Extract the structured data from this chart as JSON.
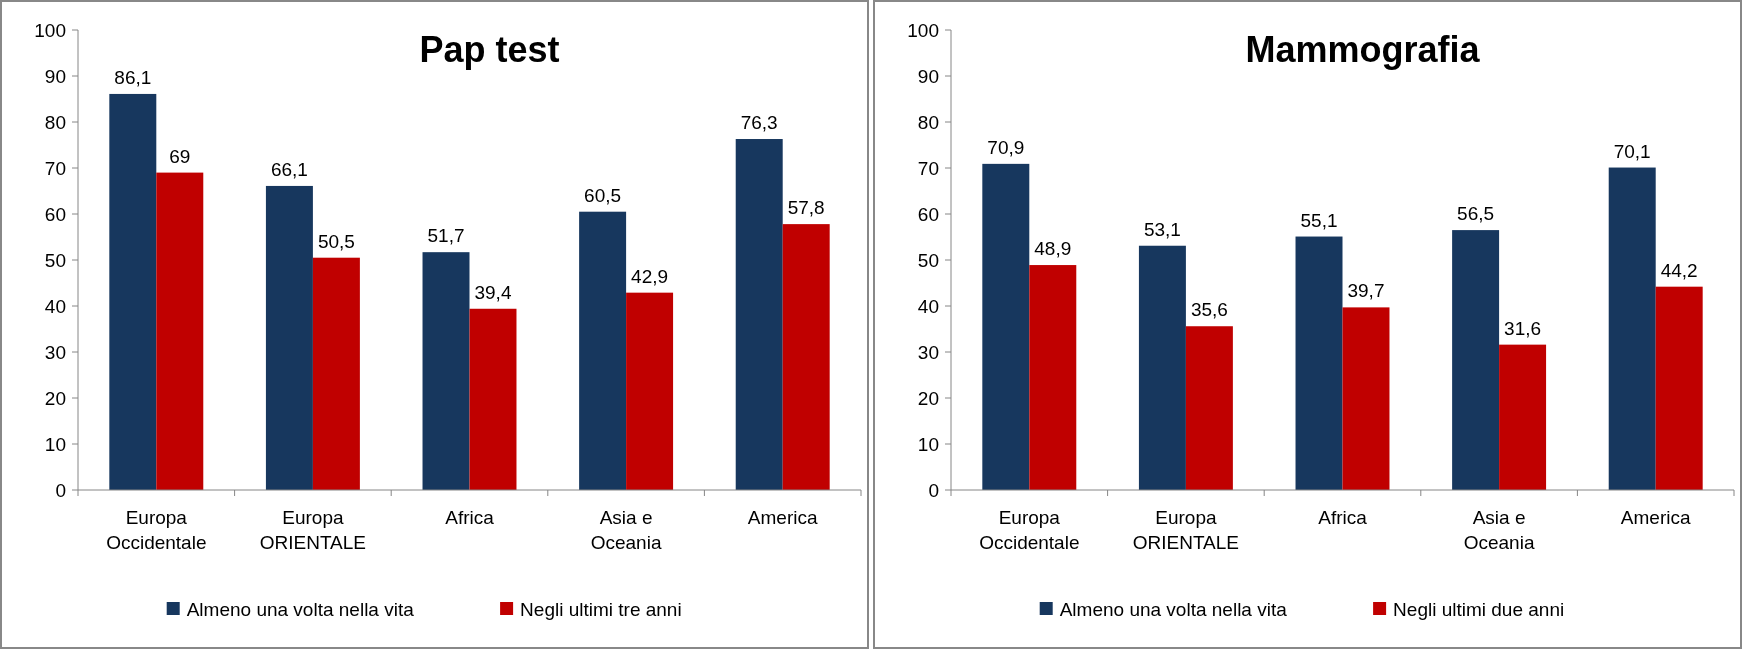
{
  "chart_data": [
    {
      "type": "bar",
      "title": "Pap test",
      "categories": [
        "Europa Occidentale",
        "Europa ORIENTALE",
        "Africa",
        "Asia e Oceania",
        "America"
      ],
      "series": [
        {
          "name": "Almeno una volta nella vita",
          "color": "#17375e",
          "values": [
            86.1,
            66.1,
            51.7,
            60.5,
            76.3
          ],
          "value_labels": [
            "86,1",
            "66,1",
            "51,7",
            "60,5",
            "76,3"
          ]
        },
        {
          "name": "Negli ultimi tre anni",
          "color": "#c00000",
          "values": [
            69,
            50.5,
            39.4,
            42.9,
            57.8
          ],
          "value_labels": [
            "69",
            "50,5",
            "39,4",
            "42,9",
            "57,8"
          ]
        }
      ],
      "ylim": [
        0,
        100
      ],
      "yticks": [
        0,
        10,
        20,
        30,
        40,
        50,
        60,
        70,
        80,
        90,
        100
      ],
      "grid": false,
      "legend": "bottom"
    },
    {
      "type": "bar",
      "title": "Mammografia",
      "categories": [
        "Europa Occidentale",
        "Europa ORIENTALE",
        "Africa",
        "Asia e Oceania",
        "America"
      ],
      "series": [
        {
          "name": "Almeno una volta nella vita",
          "color": "#17375e",
          "values": [
            70.9,
            53.1,
            55.1,
            56.5,
            70.1
          ],
          "value_labels": [
            "70,9",
            "53,1",
            "55,1",
            "56,5",
            "70,1"
          ]
        },
        {
          "name": "Negli ultimi due anni",
          "color": "#c00000",
          "values": [
            48.9,
            35.6,
            39.7,
            31.6,
            44.2
          ],
          "value_labels": [
            "48,9",
            "35,6",
            "39,7",
            "31,6",
            "44,2"
          ]
        }
      ],
      "ylim": [
        0,
        100
      ],
      "yticks": [
        0,
        10,
        20,
        30,
        40,
        50,
        60,
        70,
        80,
        90,
        100
      ],
      "grid": false,
      "legend": "bottom"
    }
  ]
}
